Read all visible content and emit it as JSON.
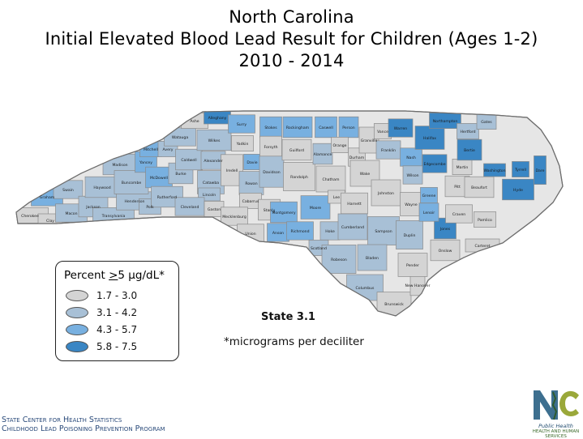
{
  "title": {
    "line1": "North Carolina",
    "line2": "Initial Elevated Blood Lead Result for Children (Ages 1-2)",
    "line3": "2010 - 2014"
  },
  "legend": {
    "title_prefix": "Percent ",
    "title_ge": ">",
    "title_value": "5 μg/dL*",
    "classes": [
      {
        "label": "1.7 - 3.0",
        "color": "#d4d4d4"
      },
      {
        "label": "3.1 - 4.2",
        "color": "#a8c0d6"
      },
      {
        "label": "4.3 - 5.7",
        "color": "#78b0e0"
      },
      {
        "label": "5.8 - 7.5",
        "color": "#3a86c4"
      }
    ]
  },
  "plate_label": "State 3.1",
  "footnote": "*micrograms per deciliter",
  "source": {
    "line1": "State Center for Health Statistics",
    "line2": "Childhood Lead Poisoning Prevention Program"
  },
  "logo": {
    "line1": "Public Health",
    "line2": "HEALTH AND HUMAN SERVICES"
  },
  "counties": [
    {
      "name": "Cherokee",
      "class": 0
    },
    {
      "name": "Clay",
      "class": 0
    },
    {
      "name": "Graham",
      "class": 2
    },
    {
      "name": "Swain",
      "class": 1
    },
    {
      "name": "Macon",
      "class": 1
    },
    {
      "name": "Jackson",
      "class": 1
    },
    {
      "name": "Haywood",
      "class": 1
    },
    {
      "name": "Transylvania",
      "class": 1
    },
    {
      "name": "Henderson",
      "class": 1
    },
    {
      "name": "Madison",
      "class": 1
    },
    {
      "name": "Buncombe",
      "class": 1
    },
    {
      "name": "Yancey",
      "class": 2
    },
    {
      "name": "Mitchell",
      "class": 2
    },
    {
      "name": "Avery",
      "class": 1
    },
    {
      "name": "McDowell",
      "class": 2
    },
    {
      "name": "Polk",
      "class": 1
    },
    {
      "name": "Rutherford",
      "class": 1
    },
    {
      "name": "Burke",
      "class": 1
    },
    {
      "name": "Watauga",
      "class": 1
    },
    {
      "name": "Caldwell",
      "class": 1
    },
    {
      "name": "Ashe",
      "class": 0
    },
    {
      "name": "Alleghany",
      "class": 3
    },
    {
      "name": "Wilkes",
      "class": 1
    },
    {
      "name": "Alexander",
      "class": 1
    },
    {
      "name": "Catawba",
      "class": 1
    },
    {
      "name": "Lincoln",
      "class": 1
    },
    {
      "name": "Cleveland",
      "class": 1
    },
    {
      "name": "Gaston",
      "class": 0
    },
    {
      "name": "Surry",
      "class": 2
    },
    {
      "name": "Yadkin",
      "class": 0
    },
    {
      "name": "Iredell",
      "class": 0
    },
    {
      "name": "Davie",
      "class": 2
    },
    {
      "name": "Rowan",
      "class": 1
    },
    {
      "name": "Cabarrus",
      "class": 0
    },
    {
      "name": "Mecklenburg",
      "class": 0
    },
    {
      "name": "Stokes",
      "class": 2
    },
    {
      "name": "Forsyth",
      "class": 0
    },
    {
      "name": "Davidson",
      "class": 1
    },
    {
      "name": "Stanly",
      "class": 0
    },
    {
      "name": "Union",
      "class": 0
    },
    {
      "name": "Anson",
      "class": 2
    },
    {
      "name": "Rockingham",
      "class": 2
    },
    {
      "name": "Guilford",
      "class": 0
    },
    {
      "name": "Randolph",
      "class": 0
    },
    {
      "name": "Montgomery",
      "class": 2
    },
    {
      "name": "Richmond",
      "class": 2
    },
    {
      "name": "Caswell",
      "class": 2
    },
    {
      "name": "Alamance",
      "class": 1
    },
    {
      "name": "Person",
      "class": 2
    },
    {
      "name": "Orange",
      "class": 0
    },
    {
      "name": "Durham",
      "class": 0
    },
    {
      "name": "Chatham",
      "class": 0
    },
    {
      "name": "Moore",
      "class": 2
    },
    {
      "name": "Lee",
      "class": 0
    },
    {
      "name": "Harnett",
      "class": 0
    },
    {
      "name": "Hoke",
      "class": 1
    },
    {
      "name": "Scotland",
      "class": 1
    },
    {
      "name": "Robeson",
      "class": 1
    },
    {
      "name": "Cumberland",
      "class": 1
    },
    {
      "name": "Granville",
      "class": 0
    },
    {
      "name": "Vance",
      "class": 0
    },
    {
      "name": "Warren",
      "class": 3
    },
    {
      "name": "Franklin",
      "class": 1
    },
    {
      "name": "Wake",
      "class": 0
    },
    {
      "name": "Johnston",
      "class": 0
    },
    {
      "name": "Nash",
      "class": 2
    },
    {
      "name": "Halifax",
      "class": 3
    },
    {
      "name": "Edgecombe",
      "class": 3
    },
    {
      "name": "Wilson",
      "class": 1
    },
    {
      "name": "Wayne",
      "class": 0
    },
    {
      "name": "Sampson",
      "class": 1
    },
    {
      "name": "Bladen",
      "class": 1
    },
    {
      "name": "Columbus",
      "class": 1
    },
    {
      "name": "Brunswick",
      "class": 0
    },
    {
      "name": "New Hanover",
      "class": 0
    },
    {
      "name": "Pender",
      "class": 0
    },
    {
      "name": "Duplin",
      "class": 1
    },
    {
      "name": "Onslow",
      "class": 0
    },
    {
      "name": "Jones",
      "class": 3
    },
    {
      "name": "Lenoir",
      "class": 2
    },
    {
      "name": "Greene",
      "class": 2
    },
    {
      "name": "Pitt",
      "class": 0
    },
    {
      "name": "Craven",
      "class": 0
    },
    {
      "name": "Pamlico",
      "class": 0
    },
    {
      "name": "Carteret",
      "class": 0
    },
    {
      "name": "Beaufort",
      "class": 0
    },
    {
      "name": "Martin",
      "class": 0
    },
    {
      "name": "Bertie",
      "class": 3
    },
    {
      "name": "Northampton",
      "class": 3
    },
    {
      "name": "Hertford",
      "class": 1
    },
    {
      "name": "Gates",
      "class": 1
    },
    {
      "name": "Washington",
      "class": 3
    },
    {
      "name": "Tyrrell",
      "class": 3
    },
    {
      "name": "Hyde",
      "class": 3
    },
    {
      "name": "Dare",
      "class": 3
    }
  ]
}
